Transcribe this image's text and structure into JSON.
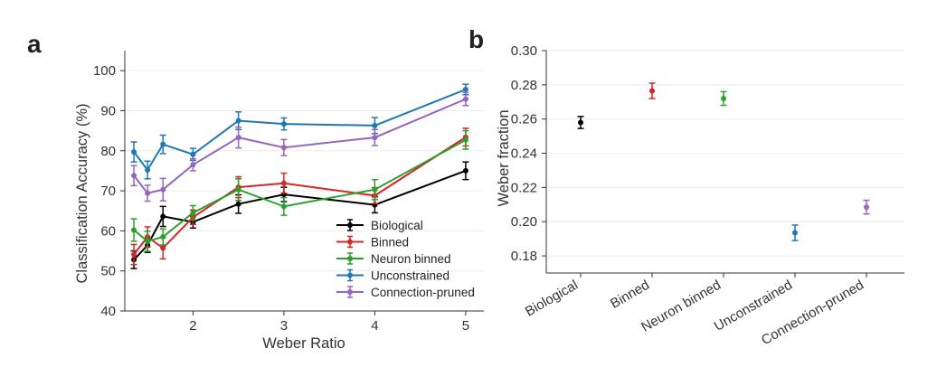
{
  "colors": {
    "Biological": "#000000",
    "Binned": "#d62728",
    "Neuron binned": "#2ca02c",
    "Unconstrained": "#1f77b4",
    "Connection-pruned": "#9467bd"
  },
  "chart_data": [
    {
      "panel": "a",
      "type": "line",
      "xlabel": "Weber Ratio",
      "ylabel": "Classification Accuracy (%)",
      "xlim": [
        1.25,
        5.2
      ],
      "ylim": [
        40,
        105
      ],
      "xticks": [
        2,
        3,
        4,
        5
      ],
      "yticks": [
        40,
        50,
        60,
        70,
        80,
        90,
        100
      ],
      "grid": true,
      "legend": "lower right",
      "x": [
        1.35,
        1.5,
        1.67,
        2,
        2.5,
        3,
        4,
        5
      ],
      "series": [
        {
          "name": "Biological",
          "values": [
            52.8,
            56.4,
            63.6,
            62.2,
            66.7,
            69.1,
            66.5,
            75.0
          ],
          "err": [
            2.2,
            1.8,
            2.5,
            1.5,
            2.3,
            1.8,
            2.0,
            2.2
          ]
        },
        {
          "name": "Binned",
          "values": [
            54.1,
            58.5,
            55.7,
            63.4,
            70.9,
            71.9,
            68.8,
            83.4
          ],
          "err": [
            2.5,
            2.5,
            2.7,
            1.8,
            2.6,
            2.5,
            2.0,
            2.2
          ]
        },
        {
          "name": "Neuron binned",
          "values": [
            60.2,
            57.4,
            58.5,
            64.5,
            70.3,
            66.1,
            70.3,
            82.7
          ],
          "err": [
            2.8,
            2.5,
            2.0,
            1.8,
            2.7,
            2.2,
            2.5,
            2.3
          ]
        },
        {
          "name": "Unconstrained",
          "values": [
            79.7,
            75.2,
            81.6,
            79.1,
            87.5,
            86.7,
            86.3,
            95.3
          ],
          "err": [
            2.5,
            2.2,
            2.3,
            1.5,
            2.2,
            1.5,
            2.0,
            1.3
          ]
        },
        {
          "name": "Connection-pruned",
          "values": [
            73.8,
            69.4,
            70.3,
            76.5,
            83.3,
            80.8,
            83.3,
            92.9
          ],
          "err": [
            2.5,
            2.0,
            2.8,
            1.5,
            2.6,
            2.0,
            2.0,
            1.6
          ]
        }
      ]
    },
    {
      "panel": "b",
      "type": "scatter",
      "ylabel": "Weber fraction",
      "xlabel": "",
      "ylim": [
        0.17,
        0.3
      ],
      "yticks": [
        0.18,
        0.2,
        0.22,
        0.24,
        0.26,
        0.28,
        0.3
      ],
      "grid": true,
      "categories": [
        "Biological",
        "Binned",
        "Neuron binned",
        "Unconstrained",
        "Connection-pruned"
      ],
      "values": [
        0.258,
        0.2765,
        0.272,
        0.1935,
        0.2085
      ],
      "err": [
        0.0035,
        0.0045,
        0.004,
        0.0045,
        0.004
      ]
    }
  ]
}
